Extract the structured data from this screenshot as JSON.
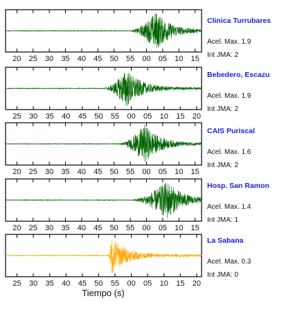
{
  "chart_data": [
    {
      "type": "line",
      "station": "Clinica Turrubares",
      "accel_label": "Acel. Max. 1.9",
      "int_label": "Int JMA: 2",
      "color": "#006400",
      "tick_labels": [
        "20",
        "25",
        "30",
        "35",
        "40",
        "45",
        "50",
        "55",
        "00",
        "05",
        "10",
        "15"
      ],
      "x_range_s": [
        16.5,
        77
      ],
      "onset_s": 55.5,
      "peak_s": 63,
      "peak_amp": 1.0,
      "end_s": 77
    },
    {
      "type": "line",
      "station": "Bebedero, Escazu",
      "accel_label": "Acel. Max. 1.9",
      "int_label": "Int JMA: 2",
      "color": "#006400",
      "tick_labels": [
        "25",
        "30",
        "35",
        "40",
        "45",
        "50",
        "55",
        "00",
        "05",
        "10",
        "15",
        "20"
      ],
      "x_range_s": [
        21.5,
        81.5
      ],
      "onset_s": 52,
      "peak_s": 58.5,
      "peak_amp": 1.0,
      "end_s": 81.5
    },
    {
      "type": "line",
      "station": "CAIS Puriscal",
      "accel_label": "Acel. Max. 1.6",
      "int_label": "Int JMA: 2",
      "color": "#006400",
      "tick_labels": [
        "20",
        "25",
        "30",
        "35",
        "40",
        "45",
        "50",
        "55",
        "00",
        "05",
        "10",
        "15"
      ],
      "x_range_s": [
        16.5,
        77
      ],
      "onset_s": 52,
      "peak_s": 59.5,
      "peak_amp": 1.0,
      "end_s": 77
    },
    {
      "type": "line",
      "station": "Hosp. San Ramon",
      "accel_label": "Acel. Max. 1.4",
      "int_label": "Int JMA: 1",
      "color": "#006400",
      "tick_labels": [
        "20",
        "25",
        "30",
        "35",
        "40",
        "45",
        "50",
        "55",
        "00",
        "05",
        "10",
        "15"
      ],
      "x_range_s": [
        16.5,
        77
      ],
      "onset_s": 56,
      "peak_s": 66.5,
      "peak_amp": 1.0,
      "end_s": 77
    },
    {
      "type": "line",
      "station": "La Sabana",
      "accel_label": "Acel. Max. 0.3",
      "int_label": "Int JMA: 0",
      "color": "#ffa500",
      "tick_labels": [
        "25",
        "30",
        "35",
        "40",
        "45",
        "50",
        "55",
        "00",
        "05",
        "10",
        "15",
        "20"
      ],
      "x_range_s": [
        21.5,
        81.5
      ],
      "onset_s": 53,
      "peak_s": 54,
      "peak_amp": 1.0,
      "end_s": 81.5
    }
  ],
  "xlabel": "Tiempo (s)"
}
